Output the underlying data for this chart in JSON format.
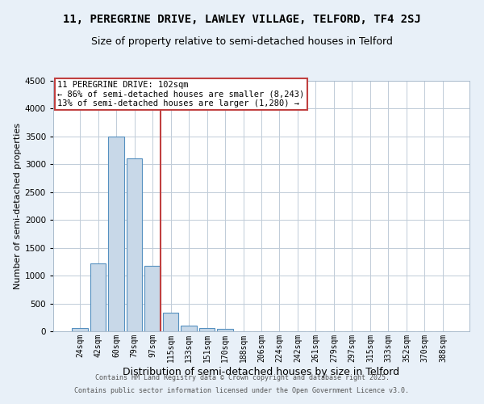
{
  "title": "11, PEREGRINE DRIVE, LAWLEY VILLAGE, TELFORD, TF4 2SJ",
  "subtitle": "Size of property relative to semi-detached houses in Telford",
  "xlabel": "Distribution of semi-detached houses by size in Telford",
  "ylabel": "Number of semi-detached properties",
  "categories": [
    "24sqm",
    "42sqm",
    "60sqm",
    "79sqm",
    "97sqm",
    "115sqm",
    "133sqm",
    "151sqm",
    "170sqm",
    "188sqm",
    "206sqm",
    "224sqm",
    "242sqm",
    "261sqm",
    "279sqm",
    "297sqm",
    "315sqm",
    "333sqm",
    "352sqm",
    "370sqm",
    "388sqm"
  ],
  "values": [
    55,
    1220,
    3500,
    3100,
    1180,
    330,
    105,
    55,
    50,
    0,
    0,
    0,
    0,
    0,
    0,
    0,
    0,
    0,
    0,
    0,
    0
  ],
  "bar_color": "#c8d8e8",
  "bar_edge_color": "#5590c0",
  "highlight_bin_index": 4,
  "highlight_line_color": "#c04040",
  "annotation_text": "11 PEREGRINE DRIVE: 102sqm\n← 86% of semi-detached houses are smaller (8,243)\n13% of semi-detached houses are larger (1,280) →",
  "annotation_box_color": "#c04040",
  "ylim": [
    0,
    4500
  ],
  "yticks": [
    0,
    500,
    1000,
    1500,
    2000,
    2500,
    3000,
    3500,
    4000,
    4500
  ],
  "footer1": "Contains HM Land Registry data © Crown copyright and database right 2025.",
  "footer2": "Contains public sector information licensed under the Open Government Licence v3.0.",
  "bg_color": "#e8f0f8",
  "plot_bg_color": "#ffffff",
  "title_fontsize": 10,
  "subtitle_fontsize": 9,
  "tick_fontsize": 7,
  "ylabel_fontsize": 8,
  "xlabel_fontsize": 9,
  "footer_fontsize": 6,
  "annot_fontsize": 7.5
}
